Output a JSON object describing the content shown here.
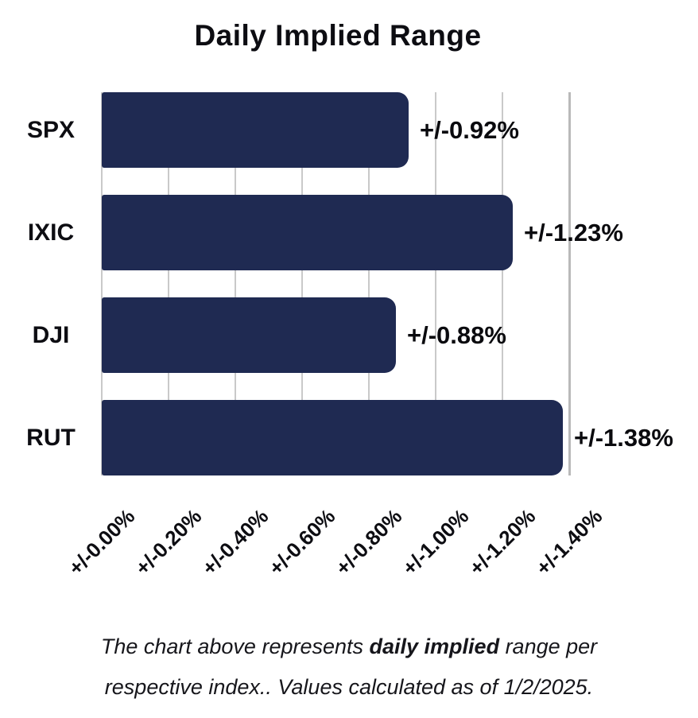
{
  "chart_data": {
    "type": "bar",
    "orientation": "horizontal",
    "title": "Daily Implied Range",
    "categories": [
      "SPX",
      "IXIC",
      "DJI",
      "RUT"
    ],
    "values": [
      0.92,
      1.23,
      0.88,
      1.38
    ],
    "bar_labels": [
      "+/-0.92%",
      "+/-1.23%",
      "+/-0.88%",
      "+/-1.38%"
    ],
    "x_ticks": [
      0.0,
      0.2,
      0.4,
      0.6,
      0.8,
      1.0,
      1.2,
      1.4
    ],
    "x_tick_labels": [
      "+/-0.00%",
      "+/-0.20%",
      "+/-0.40%",
      "+/-0.60%",
      "+/-0.80%",
      "+/-1.00%",
      "+/-1.20%",
      "+/-1.40%"
    ],
    "xlim": [
      0,
      1.4
    ],
    "grid": true,
    "legend": false,
    "bar_color": "#1f2a52",
    "grid_color": "#c9c9c9",
    "end_grid_color": "#b9b9b9",
    "x_tick_rotation_deg": -45
  },
  "caption": {
    "line1_prefix": "The chart above represents ",
    "line1_bold": "daily implied",
    "line1_suffix": " range per",
    "line2": "respective index.. Values calculated as of 1/2/2025."
  }
}
